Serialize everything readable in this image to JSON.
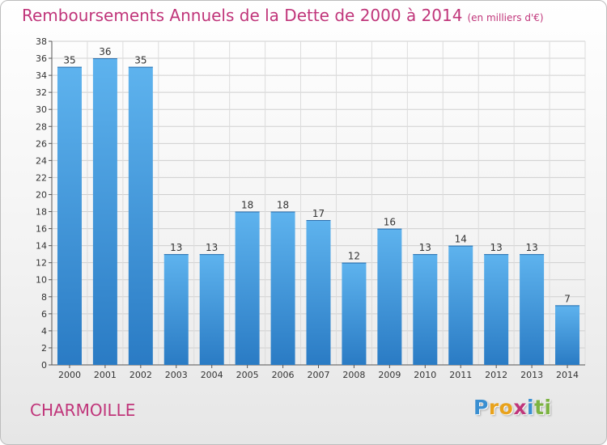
{
  "header": {
    "title": "Remboursements Annuels de la Dette de 2000 à 2014",
    "unit": "(en milliers d'€)"
  },
  "commune": "CHARMOILLE",
  "logo": {
    "letters": [
      "P",
      "r",
      "o",
      "x",
      "i",
      "t",
      "i"
    ],
    "colors": [
      "#3a8fd1",
      "#e8a21c",
      "#e8a21c",
      "#c0357a",
      "#3a8fd1",
      "#7cb342",
      "#7cb342"
    ]
  },
  "chart_data": {
    "type": "bar",
    "title": "Remboursements Annuels de la Dette de 2000 à 2014",
    "xlabel": "",
    "ylabel": "",
    "categories": [
      "2000",
      "2001",
      "2002",
      "2003",
      "2004",
      "2005",
      "2006",
      "2007",
      "2008",
      "2009",
      "2010",
      "2011",
      "2012",
      "2013",
      "2014"
    ],
    "values": [
      35,
      36,
      35,
      13,
      13,
      18,
      18,
      17,
      12,
      16,
      13,
      14,
      13,
      13,
      7
    ],
    "ylim": [
      0,
      38
    ],
    "yticks": [
      0,
      2,
      4,
      6,
      8,
      10,
      12,
      14,
      16,
      18,
      20,
      22,
      24,
      26,
      28,
      30,
      32,
      34,
      36,
      38
    ],
    "grid": true,
    "bar_color": "#4a9fe0"
  }
}
